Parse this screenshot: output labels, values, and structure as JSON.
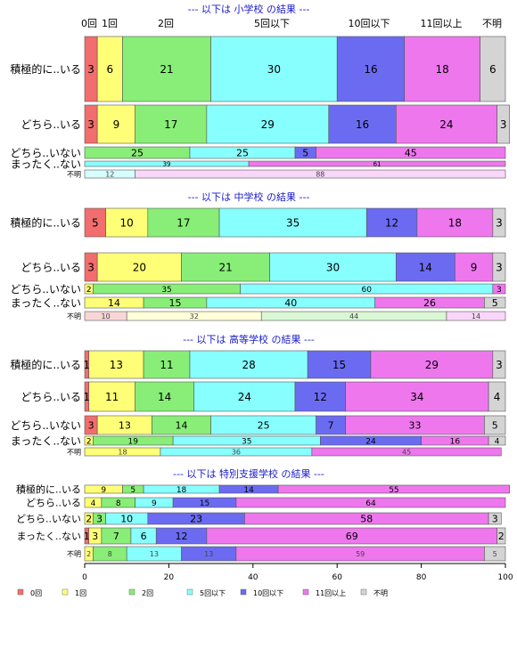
{
  "chart_data": {
    "type": "bar",
    "orientation": "horizontal",
    "stacked": "percent",
    "xlim": [
      0,
      100
    ],
    "xticks": [
      0,
      20,
      40,
      60,
      80,
      100
    ],
    "legend_placement": "bottom",
    "series_names": [
      "0回",
      "1回",
      "2回",
      "5回以下",
      "10回以下",
      "11回以上",
      "不明"
    ],
    "colors": [
      "#f26d6d",
      "#ffff77",
      "#88ee77",
      "#88ffff",
      "#6b6bf2",
      "#ee77ee",
      "#d4d4d4"
    ],
    "faint_colors": [
      "#f9d6d6",
      "#ffffd9",
      "#d9f7d4",
      "#d6ffff",
      "#d4d4f9",
      "#fad6fa",
      "#ededed"
    ],
    "top_labels": [
      "0回",
      "1回",
      "2回",
      "5回以下",
      "10回以下",
      "11回以上",
      "不明"
    ],
    "sections": [
      {
        "title": "--- 以下は 小学校 の結果 ---",
        "rows": [
          {
            "label": "積極的に..いる",
            "values": [
              3,
              6,
              21,
              30,
              16,
              18,
              6
            ]
          },
          {
            "label": "どちら..いる",
            "values": [
              3,
              9,
              17,
              29,
              16,
              24,
              3
            ]
          },
          {
            "label": "どちら..いない",
            "values": [
              0,
              0,
              25,
              25,
              5,
              45,
              0
            ]
          },
          {
            "label": "まったく..ない",
            "values": [
              0,
              0,
              0,
              39,
              0,
              61,
              0
            ]
          },
          {
            "label": "不明",
            "values": [
              0,
              0,
              0,
              12,
              0,
              88,
              0
            ]
          }
        ]
      },
      {
        "title": "--- 以下は 中学校 の結果 ---",
        "rows": [
          {
            "label": "積極的に..いる",
            "values": [
              5,
              10,
              17,
              35,
              12,
              18,
              3
            ]
          },
          {
            "label": "どちら..いる",
            "values": [
              3,
              20,
              21,
              30,
              14,
              9,
              3
            ]
          },
          {
            "label": "どちら..いない",
            "values": [
              0,
              2,
              35,
              60,
              0,
              3,
              0
            ]
          },
          {
            "label": "まったく..ない",
            "values": [
              0,
              14,
              15,
              40,
              0,
              26,
              5
            ]
          },
          {
            "label": "不明",
            "values": [
              10,
              32,
              44,
              0,
              0,
              14,
              0
            ]
          }
        ]
      },
      {
        "title": "--- 以下は 高等学校 の結果 ---",
        "rows": [
          {
            "label": "積極的に..いる",
            "values": [
              1,
              13,
              11,
              28,
              15,
              29,
              3
            ]
          },
          {
            "label": "どちら..いる",
            "values": [
              1,
              11,
              14,
              24,
              12,
              34,
              4
            ]
          },
          {
            "label": "どちら..いない",
            "values": [
              3,
              13,
              14,
              25,
              7,
              33,
              5
            ]
          },
          {
            "label": "まったく..ない",
            "values": [
              0,
              2,
              19,
              35,
              24,
              16,
              4
            ]
          },
          {
            "label": "不明",
            "values": [
              0,
              18,
              0,
              36,
              0,
              45,
              0
            ]
          }
        ]
      },
      {
        "title": "--- 以下は 特別支援学校 の結果 ---",
        "rows": [
          {
            "label": "積極的に..いる",
            "values": [
              0,
              9,
              5,
              18,
              14,
              55,
              0
            ]
          },
          {
            "label": "どちら..いる",
            "values": [
              0,
              4,
              8,
              9,
              15,
              64,
              0
            ]
          },
          {
            "label": "どちら..いない",
            "values": [
              0,
              2,
              3,
              10,
              23,
              58,
              3
            ]
          },
          {
            "label": "まったく..ない",
            "values": [
              1,
              3,
              7,
              6,
              12,
              69,
              2
            ]
          },
          {
            "label": "不明",
            "values": [
              0,
              2,
              8,
              13,
              13,
              59,
              5
            ]
          }
        ]
      }
    ]
  }
}
